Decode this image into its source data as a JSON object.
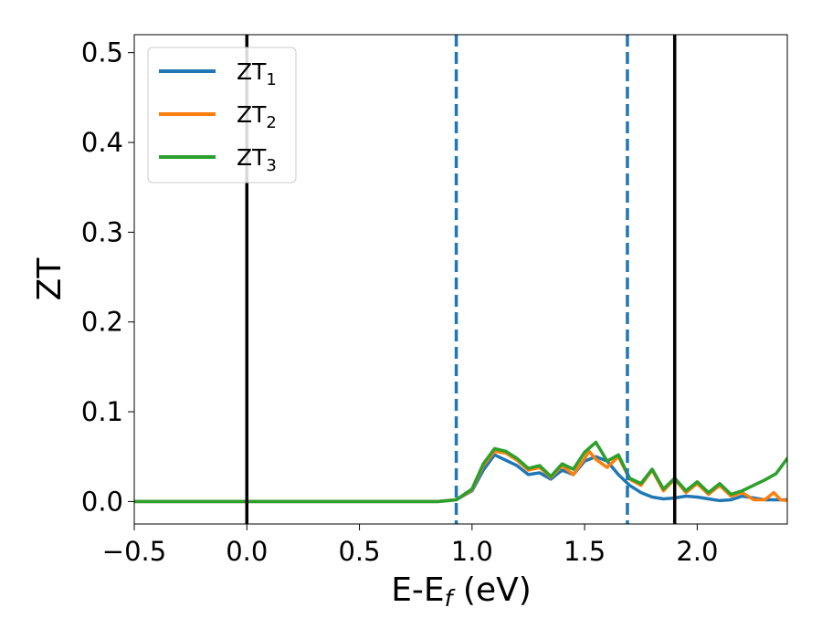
{
  "chart_data": {
    "type": "line",
    "title": "",
    "xlabel": {
      "main": "E-E",
      "sub": "f",
      "unit": " (eV)"
    },
    "ylabel": "ZT",
    "xlim": [
      -0.5,
      2.4
    ],
    "ylim": [
      -0.025,
      0.52
    ],
    "x_ticks": [
      -0.5,
      0.0,
      0.5,
      1.0,
      1.5,
      2.0
    ],
    "x_tick_labels": [
      "−0.5",
      "0.0",
      "0.5",
      "1.0",
      "1.5",
      "2.0"
    ],
    "y_ticks": [
      0.0,
      0.1,
      0.2,
      0.3,
      0.4,
      0.5
    ],
    "y_tick_labels": [
      "0.0",
      "0.1",
      "0.2",
      "0.3",
      "0.4",
      "0.5"
    ],
    "grid": false,
    "legend": {
      "placement": "top-left"
    },
    "vlines": [
      {
        "x": 0.0,
        "style": "solid",
        "color": "#000000"
      },
      {
        "x": 1.9,
        "style": "solid",
        "color": "#000000"
      },
      {
        "x": 0.93,
        "style": "dashed",
        "color": "#1f77b4"
      },
      {
        "x": 1.69,
        "style": "dashed",
        "color": "#1f77b4"
      }
    ],
    "series": [
      {
        "name": "ZT",
        "sub": "1",
        "color": "#1f77b4",
        "x": [
          -0.5,
          0.0,
          0.5,
          0.85,
          0.93,
          1.0,
          1.05,
          1.1,
          1.15,
          1.2,
          1.25,
          1.3,
          1.35,
          1.4,
          1.45,
          1.5,
          1.55,
          1.6,
          1.65,
          1.7,
          1.75,
          1.8,
          1.85,
          1.9,
          1.95,
          2.0,
          2.05,
          2.1,
          2.15,
          2.2,
          2.25,
          2.3,
          2.35,
          2.4
        ],
        "y": [
          0,
          0,
          0,
          0,
          0.002,
          0.012,
          0.035,
          0.052,
          0.046,
          0.04,
          0.03,
          0.032,
          0.025,
          0.035,
          0.03,
          0.045,
          0.05,
          0.045,
          0.03,
          0.018,
          0.01,
          0.005,
          0.003,
          0.004,
          0.006,
          0.005,
          0.003,
          0.001,
          0.002,
          0.006,
          0.004,
          0.002,
          0.002,
          0.002
        ]
      },
      {
        "name": "ZT",
        "sub": "2",
        "color": "#ff7f0e",
        "x": [
          -0.5,
          0.0,
          0.5,
          0.85,
          0.93,
          1.0,
          1.05,
          1.1,
          1.15,
          1.2,
          1.25,
          1.3,
          1.35,
          1.4,
          1.45,
          1.5,
          1.52,
          1.55,
          1.6,
          1.65,
          1.7,
          1.75,
          1.8,
          1.85,
          1.9,
          1.95,
          2.0,
          2.05,
          2.1,
          2.15,
          2.2,
          2.25,
          2.3,
          2.34,
          2.37,
          2.4
        ],
        "y": [
          0,
          0,
          0,
          0,
          0.002,
          0.013,
          0.04,
          0.056,
          0.054,
          0.046,
          0.035,
          0.038,
          0.027,
          0.04,
          0.03,
          0.048,
          0.056,
          0.047,
          0.038,
          0.05,
          0.025,
          0.018,
          0.035,
          0.012,
          0.025,
          0.01,
          0.02,
          0.008,
          0.018,
          0.006,
          0.01,
          0.002,
          0.002,
          0.01,
          0.002,
          0.001
        ]
      },
      {
        "name": "ZT",
        "sub": "3",
        "color": "#2ca02c",
        "x": [
          -0.5,
          0.0,
          0.5,
          0.85,
          0.93,
          1.0,
          1.05,
          1.1,
          1.15,
          1.2,
          1.25,
          1.3,
          1.35,
          1.4,
          1.45,
          1.5,
          1.55,
          1.6,
          1.65,
          1.7,
          1.75,
          1.8,
          1.85,
          1.9,
          1.95,
          2.0,
          2.05,
          2.1,
          2.15,
          2.2,
          2.25,
          2.3,
          2.35,
          2.4
        ],
        "y": [
          0,
          0,
          0,
          0,
          0.002,
          0.014,
          0.042,
          0.059,
          0.056,
          0.048,
          0.037,
          0.04,
          0.028,
          0.042,
          0.036,
          0.055,
          0.066,
          0.045,
          0.052,
          0.026,
          0.02,
          0.036,
          0.014,
          0.026,
          0.012,
          0.022,
          0.01,
          0.02,
          0.008,
          0.012,
          0.018,
          0.024,
          0.031,
          0.048
        ]
      }
    ]
  }
}
